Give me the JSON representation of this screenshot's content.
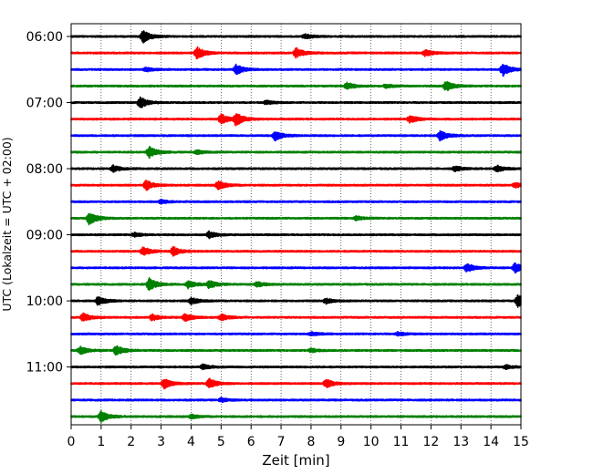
{
  "chart_data": {
    "type": "line",
    "title": "",
    "xlabel": "Zeit  [min]",
    "ylabel": "UTC (Lokalzeit = UTC + 02:00)",
    "xlim": [
      0,
      15
    ],
    "x_ticks": [
      0,
      1,
      2,
      3,
      4,
      5,
      6,
      7,
      8,
      9,
      10,
      11,
      12,
      13,
      14,
      15
    ],
    "x_tick_labels": [
      "0",
      "1",
      "2",
      "3",
      "4",
      "5",
      "6",
      "7",
      "8",
      "9",
      "10",
      "11",
      "12",
      "13",
      "14",
      "15"
    ],
    "y_tick_labels": [
      {
        "label": "06:00",
        "row": 0
      },
      {
        "label": "07:00",
        "row": 4
      },
      {
        "label": "08:00",
        "row": 8
      },
      {
        "label": "09:00",
        "row": 12
      },
      {
        "label": "10:00",
        "row": 16
      },
      {
        "label": "11:00",
        "row": 20
      }
    ],
    "grid": "vertical dotted lines at each minute",
    "row_colors": [
      "#000000",
      "#ff0000",
      "#0000ff",
      "#008000"
    ],
    "series": [
      {
        "start_utc": "06:00",
        "color": "#000000",
        "events": [
          [
            2.4,
            1.0
          ],
          [
            7.8,
            0.4
          ]
        ]
      },
      {
        "start_utc": "06:15",
        "color": "#ff0000",
        "events": [
          [
            4.2,
            1.0
          ],
          [
            7.5,
            0.8
          ],
          [
            11.8,
            0.5
          ]
        ]
      },
      {
        "start_utc": "06:30",
        "color": "#0000ff",
        "events": [
          [
            5.5,
            0.8
          ],
          [
            14.4,
            1.0
          ],
          [
            2.5,
            0.3
          ]
        ]
      },
      {
        "start_utc": "06:45",
        "color": "#008000",
        "events": [
          [
            9.2,
            0.5
          ],
          [
            12.5,
            0.8
          ],
          [
            10.5,
            0.3
          ]
        ]
      },
      {
        "start_utc": "07:00",
        "color": "#000000",
        "events": [
          [
            2.3,
            0.9
          ],
          [
            6.5,
            0.3
          ]
        ]
      },
      {
        "start_utc": "07:15",
        "color": "#ff0000",
        "events": [
          [
            5.0,
            0.8
          ],
          [
            5.5,
            1.0
          ],
          [
            11.3,
            0.6
          ]
        ]
      },
      {
        "start_utc": "07:30",
        "color": "#0000ff",
        "events": [
          [
            6.8,
            0.8
          ],
          [
            12.3,
            0.8
          ]
        ]
      },
      {
        "start_utc": "07:45",
        "color": "#008000",
        "events": [
          [
            2.6,
            0.9
          ],
          [
            4.2,
            0.3
          ]
        ]
      },
      {
        "start_utc": "08:00",
        "color": "#000000",
        "events": [
          [
            1.4,
            0.5
          ],
          [
            12.8,
            0.4
          ],
          [
            14.2,
            0.5
          ]
        ]
      },
      {
        "start_utc": "08:15",
        "color": "#ff0000",
        "events": [
          [
            2.5,
            0.8
          ],
          [
            4.9,
            0.7
          ],
          [
            14.8,
            0.4
          ]
        ]
      },
      {
        "start_utc": "08:30",
        "color": "#0000ff",
        "events": [
          [
            3.0,
            0.3
          ]
        ]
      },
      {
        "start_utc": "08:45",
        "color": "#008000",
        "events": [
          [
            0.6,
            1.0
          ],
          [
            9.5,
            0.3
          ]
        ]
      },
      {
        "start_utc": "09:00",
        "color": "#000000",
        "events": [
          [
            4.6,
            0.5
          ],
          [
            2.1,
            0.3
          ]
        ]
      },
      {
        "start_utc": "09:15",
        "color": "#ff0000",
        "events": [
          [
            2.4,
            0.7
          ],
          [
            3.4,
            0.7
          ]
        ]
      },
      {
        "start_utc": "09:30",
        "color": "#0000ff",
        "events": [
          [
            13.2,
            0.7
          ],
          [
            14.8,
            0.8
          ]
        ]
      },
      {
        "start_utc": "09:45",
        "color": "#008000",
        "events": [
          [
            2.6,
            1.0
          ],
          [
            3.9,
            0.6
          ],
          [
            4.6,
            0.6
          ],
          [
            6.2,
            0.4
          ]
        ]
      },
      {
        "start_utc": "10:00",
        "color": "#000000",
        "events": [
          [
            0.9,
            0.7
          ],
          [
            4.0,
            0.5
          ],
          [
            8.5,
            0.4
          ],
          [
            14.9,
            1.0
          ]
        ]
      },
      {
        "start_utc": "10:15",
        "color": "#ff0000",
        "events": [
          [
            0.4,
            0.7
          ],
          [
            2.7,
            0.5
          ],
          [
            3.8,
            0.6
          ],
          [
            5.0,
            0.5
          ]
        ]
      },
      {
        "start_utc": "10:30",
        "color": "#0000ff",
        "events": [
          [
            8.0,
            0.3
          ],
          [
            10.9,
            0.3
          ]
        ]
      },
      {
        "start_utc": "10:45",
        "color": "#008000",
        "events": [
          [
            0.3,
            0.6
          ],
          [
            1.5,
            0.8
          ],
          [
            8.0,
            0.3
          ]
        ]
      },
      {
        "start_utc": "11:00",
        "color": "#000000",
        "events": [
          [
            4.4,
            0.4
          ],
          [
            14.5,
            0.3
          ]
        ]
      },
      {
        "start_utc": "11:15",
        "color": "#ff0000",
        "events": [
          [
            3.1,
            0.8
          ],
          [
            4.6,
            0.8
          ],
          [
            8.5,
            0.7
          ]
        ]
      },
      {
        "start_utc": "11:30",
        "color": "#0000ff",
        "events": [
          [
            5.0,
            0.3
          ]
        ]
      },
      {
        "start_utc": "11:45",
        "color": "#008000",
        "events": [
          [
            1.0,
            0.9
          ],
          [
            4.0,
            0.3
          ]
        ]
      }
    ]
  }
}
